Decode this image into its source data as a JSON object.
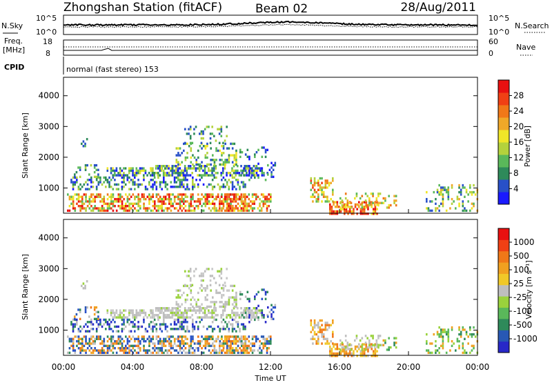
{
  "header": {
    "station": "Zhongshan Station (fitACF)",
    "beam": "Beam 02",
    "date": "28/Aug/2011"
  },
  "ctrl": {
    "nsky_label": "N.Sky",
    "nsky_ticks": [
      "10^5",
      "10^0"
    ],
    "nsearch_label": "N.Search",
    "nsearch_ticks": [
      "10^5",
      "10^0"
    ],
    "freq_label": "Freq.",
    "freq_unit": "[MHz]",
    "freq_ticks": [
      "18",
      "8"
    ],
    "nave_label": "Nave",
    "nave_ticks": [
      "60",
      "0"
    ],
    "cpid_label": "CPID",
    "cpid_text": "normal (fast stereo) 153"
  },
  "chart_data": [
    {
      "type": "heatmap",
      "name": "power-panel",
      "ylabel": "Slant Range [km]",
      "xlabel": "",
      "y_ticks": [
        1000,
        2000,
        3000,
        4000
      ],
      "ylim": [
        180,
        4600
      ],
      "xlim_hours": [
        0,
        24
      ],
      "colorbar": {
        "label": "Power [dB]",
        "ticks": [
          "4",
          "8",
          "12",
          "16",
          "20",
          "24",
          "28"
        ],
        "colors": [
          "#1a1aff",
          "#2850c8",
          "#2e8a5a",
          "#5ab85a",
          "#b4d23c",
          "#f0e628",
          "#f0a828",
          "#f07818",
          "#f04014",
          "#e81010"
        ]
      }
    },
    {
      "type": "heatmap",
      "name": "velocity-panel",
      "ylabel": "Slant Range [km]",
      "xlabel": "Time UT",
      "y_ticks": [
        1000,
        2000,
        3000,
        4000
      ],
      "ylim": [
        180,
        4600
      ],
      "xlim_hours": [
        0,
        24
      ],
      "x_ticks": [
        "00:00",
        "04:00",
        "08:00",
        "12:00",
        "16:00",
        "20:00",
        "00:00"
      ],
      "colorbar": {
        "label": "Velocity [m s⁻¹]",
        "ticks": [
          "1000",
          "500",
          "100",
          "25",
          "-25",
          "-100",
          "-500",
          "-1000"
        ],
        "colors": [
          "#2828c8",
          "#2858b4",
          "#2e8a5a",
          "#5ab85a",
          "#9ad23c",
          "#bebebe",
          "#f0c828",
          "#f0a020",
          "#f07818",
          "#f04014",
          "#e81010"
        ]
      }
    }
  ]
}
